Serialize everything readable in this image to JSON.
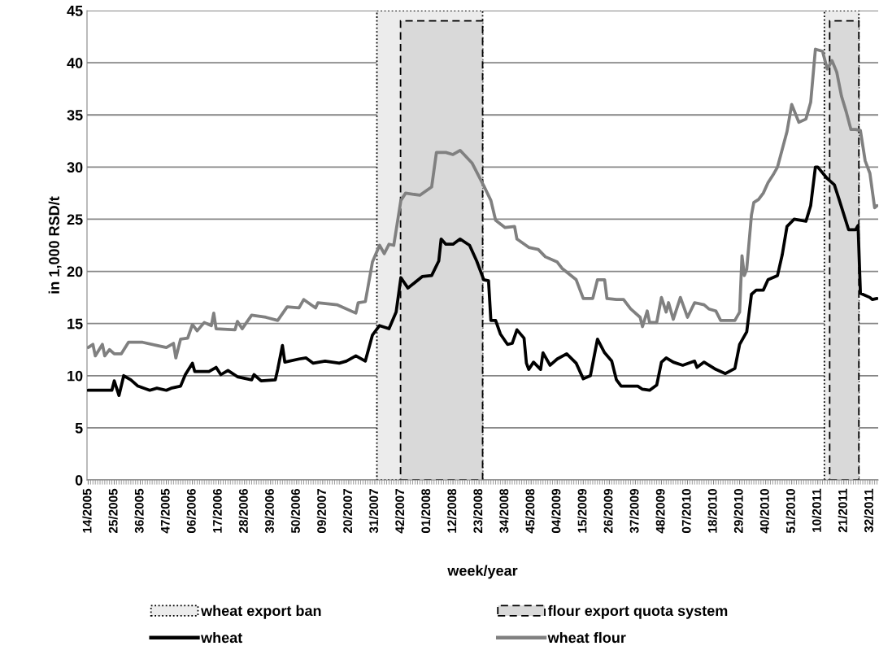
{
  "chart_data": {
    "type": "line",
    "xlabel": "week/year",
    "ylabel": "in 1,000 RSD/t",
    "ylim": [
      0,
      45
    ],
    "yticks": [
      0,
      5,
      10,
      15,
      20,
      25,
      30,
      35,
      40,
      45
    ],
    "categories": [
      "14/2005",
      null,
      null,
      null,
      null,
      null,
      null,
      null,
      null,
      null,
      null,
      "25/2005",
      null,
      null,
      null,
      null,
      null,
      null,
      null,
      null,
      null,
      null,
      "36/2005",
      null,
      null,
      null,
      null,
      null,
      null,
      null,
      null,
      null,
      null,
      "47/2005",
      null,
      null,
      null,
      null,
      null,
      null,
      null,
      null,
      null,
      null,
      "06/2006",
      null,
      null,
      null,
      null,
      null,
      null,
      null,
      null,
      null,
      null,
      "17/2006",
      null,
      null,
      null,
      null,
      null,
      null,
      null,
      null,
      null,
      null,
      "28/2006",
      null,
      null,
      null,
      null,
      null,
      null,
      null,
      null,
      null,
      null,
      "39/2006",
      null,
      null,
      null,
      null,
      null,
      null,
      null,
      null,
      null,
      null,
      "50/2006",
      null,
      null,
      null,
      null,
      null,
      null,
      null,
      null,
      null,
      null,
      "09/2007",
      null,
      null,
      null,
      null,
      null,
      null,
      null,
      null,
      null,
      null,
      "20/2007",
      null,
      null,
      null,
      null,
      null,
      null,
      null,
      null,
      null,
      null,
      "31/2007",
      null,
      null,
      null,
      null,
      null,
      null,
      null,
      null,
      null,
      null,
      "42/2007",
      null,
      null,
      null,
      null,
      null,
      null,
      null,
      null,
      null,
      null,
      "01/2008",
      null,
      null,
      null,
      null,
      null,
      null,
      null,
      null,
      null,
      null,
      "12/2008",
      null,
      null,
      null,
      null,
      null,
      null,
      null,
      null,
      null,
      null,
      "23/2008",
      null,
      null,
      null,
      null,
      null,
      null,
      null,
      null,
      null,
      null,
      "34/2008",
      null,
      null,
      null,
      null,
      null,
      null,
      null,
      null,
      null,
      null,
      "45/2008",
      null,
      null,
      null,
      null,
      null,
      null,
      null,
      null,
      null,
      null,
      "04/2009",
      null,
      null,
      null,
      null,
      null,
      null,
      null,
      null,
      null,
      null,
      "15/2009",
      null,
      null,
      null,
      null,
      null,
      null,
      null,
      null,
      null,
      null,
      "26/2009",
      null,
      null,
      null,
      null,
      null,
      null,
      null,
      null,
      null,
      null,
      "37/2009",
      null,
      null,
      null,
      null,
      null,
      null,
      null,
      null,
      null,
      null,
      "48/2009",
      null,
      null,
      null,
      null,
      null,
      null,
      null,
      null,
      null,
      null,
      "07/2010",
      null,
      null,
      null,
      null,
      null,
      null,
      null,
      null,
      null,
      null,
      "18/2010",
      null,
      null,
      null,
      null,
      null,
      null,
      null,
      null,
      null,
      null,
      "29/2010",
      null,
      null,
      null,
      null,
      null,
      null,
      null,
      null,
      null,
      null,
      "40/2010",
      null,
      null,
      null,
      null,
      null,
      null,
      null,
      null,
      null,
      null,
      "51/2010",
      null,
      null,
      null,
      null,
      null,
      null,
      null,
      null,
      null,
      null,
      "10/2011",
      null,
      null,
      null,
      null,
      null,
      null,
      null,
      null,
      null,
      null,
      "21/2011",
      null,
      null,
      null,
      null,
      null,
      null,
      null,
      null,
      null,
      null,
      "32/2011",
      null,
      null,
      null
    ],
    "grid": "y",
    "legend": "bottom",
    "marker": "none",
    "line_style": "solid",
    "annotations": [
      "wheat export ban",
      "flour export quota system"
    ],
    "series": [
      {
        "name": "wheat",
        "color": "#000000",
        "values": [
          8.6,
          null,
          null,
          null,
          null,
          null,
          null,
          null,
          null,
          null,
          8.6,
          9.5,
          null,
          8.1,
          null,
          10.0,
          null,
          null,
          9.6,
          null,
          null,
          9.0,
          null,
          null,
          null,
          null,
          8.6,
          null,
          null,
          8.8,
          null,
          null,
          null,
          8.6,
          null,
          8.8,
          null,
          null,
          null,
          9.0,
          null,
          10.1,
          null,
          null,
          11.2,
          10.4,
          null,
          null,
          null,
          null,
          null,
          10.4,
          null,
          null,
          10.8,
          null,
          10.1,
          null,
          null,
          10.5,
          null,
          null,
          null,
          9.9,
          null,
          null,
          null,
          null,
          null,
          9.6,
          10.1,
          null,
          null,
          9.5,
          null,
          null,
          null,
          null,
          null,
          9.6,
          10.6,
          null,
          12.9,
          11.3,
          null,
          null,
          null,
          null,
          null,
          11.6,
          null,
          null,
          11.7,
          null,
          null,
          11.2,
          null,
          null,
          null,
          null,
          11.4,
          null,
          null,
          null,
          null,
          null,
          11.2,
          null,
          null,
          11.4,
          null,
          null,
          null,
          11.9,
          null,
          null,
          null,
          11.4,
          null,
          null,
          13.9,
          null,
          null,
          14.8,
          null,
          null,
          null,
          14.5,
          null,
          null,
          16.1,
          null,
          19.4,
          null,
          null,
          18.4,
          null,
          null,
          null,
          null,
          null,
          19.5,
          null,
          null,
          null,
          19.6,
          null,
          null,
          21.0,
          23.1,
          null,
          22.6,
          null,
          null,
          22.6,
          null,
          null,
          23.1,
          null,
          null,
          null,
          22.5,
          null,
          null,
          21.0,
          null,
          null,
          19.2,
          null,
          19.1,
          15.3,
          null,
          15.3,
          null,
          14.0,
          null,
          null,
          13.0,
          null,
          13.1,
          null,
          14.4,
          null,
          null,
          13.6,
          11.2,
          10.6,
          null,
          11.3,
          null,
          null,
          10.6,
          12.2,
          null,
          null,
          11.0,
          null,
          null,
          11.6,
          null,
          null,
          null,
          12.1,
          null,
          null,
          null,
          11.2,
          null,
          null,
          9.7,
          null,
          null,
          10.0,
          null,
          null,
          13.5,
          null,
          null,
          12.2,
          null,
          null,
          11.4,
          null,
          9.6,
          null,
          9.0,
          null,
          null,
          null,
          null,
          null,
          null,
          9.0,
          null,
          8.7,
          null,
          null,
          8.6,
          null,
          null,
          9.1,
          null,
          11.3,
          null,
          11.7,
          null,
          null,
          11.3,
          null,
          null,
          null,
          11.0,
          null,
          null,
          null,
          null,
          11.4,
          10.8,
          null,
          null,
          11.3,
          null,
          null,
          null,
          null,
          10.6,
          null,
          null,
          null,
          10.2,
          null,
          null,
          null,
          10.7,
          null,
          13.0,
          null,
          null,
          14.2,
          null,
          17.8,
          null,
          18.2,
          null,
          null,
          18.2,
          null,
          19.2,
          null,
          null,
          null,
          19.6,
          null,
          21.6,
          null,
          24.3,
          null,
          null,
          25.0,
          null,
          null,
          null,
          null,
          24.8,
          null,
          26.3,
          null,
          30.0,
          30.0,
          null,
          null,
          null,
          28.9,
          null,
          null,
          28.3,
          null,
          26.9,
          null,
          null,
          null,
          24.0,
          null,
          null,
          24.0,
          24.4,
          17.9,
          null,
          null,
          null,
          17.5,
          17.3,
          null,
          17.4
        ]
      },
      {
        "name": "wheat flour",
        "color": "#808080",
        "values": [
          12.7,
          null,
          13.0,
          11.9,
          null,
          null,
          13.0,
          11.9,
          null,
          12.5,
          null,
          12.1,
          null,
          null,
          12.1,
          null,
          null,
          13.2,
          null,
          null,
          null,
          null,
          null,
          13.2,
          null,
          null,
          null,
          null,
          null,
          12.9,
          null,
          null,
          null,
          12.7,
          null,
          null,
          13.1,
          11.7,
          null,
          13.5,
          null,
          null,
          13.6,
          null,
          14.9,
          null,
          14.3,
          null,
          null,
          15.1,
          null,
          null,
          14.8,
          16.0,
          14.5,
          null,
          null,
          null,
          null,
          null,
          null,
          null,
          14.4,
          15.2,
          null,
          14.5,
          null,
          null,
          null,
          15.8,
          null,
          null,
          null,
          null,
          null,
          15.6,
          null,
          null,
          null,
          null,
          15.3,
          null,
          null,
          null,
          16.6,
          null,
          null,
          null,
          null,
          16.5,
          null,
          17.3,
          null,
          null,
          null,
          null,
          16.5,
          17.0,
          null,
          null,
          null,
          null,
          null,
          null,
          null,
          16.8,
          null,
          null,
          null,
          null,
          null,
          null,
          null,
          16.0,
          17.0,
          null,
          null,
          17.1,
          null,
          null,
          20.9,
          null,
          null,
          22.5,
          null,
          21.7,
          null,
          22.6,
          null,
          22.5,
          null,
          null,
          26.8,
          null,
          27.5,
          null,
          null,
          null,
          null,
          null,
          27.3,
          null,
          null,
          null,
          null,
          28.1,
          null,
          31.4,
          null,
          null,
          null,
          31.4,
          null,
          null,
          31.2,
          null,
          null,
          31.6,
          null,
          null,
          null,
          null,
          30.4,
          null,
          null,
          null,
          null,
          28.2,
          null,
          null,
          26.8,
          null,
          24.9,
          null,
          null,
          null,
          24.2,
          null,
          null,
          null,
          24.3,
          23.1,
          null,
          null,
          null,
          null,
          22.3,
          null,
          null,
          null,
          22.1,
          null,
          null,
          21.4,
          null,
          null,
          null,
          null,
          20.9,
          null,
          20.3,
          null,
          null,
          null,
          null,
          null,
          19.2,
          null,
          null,
          17.4,
          null,
          null,
          null,
          17.4,
          null,
          19.2,
          null,
          null,
          19.2,
          17.4,
          null,
          null,
          null,
          17.3,
          null,
          null,
          17.3,
          null,
          null,
          16.4,
          null,
          null,
          null,
          15.6,
          14.7,
          null,
          16.2,
          15.1,
          null,
          null,
          15.1,
          null,
          17.5,
          null,
          16.1,
          17.0,
          null,
          15.4,
          null,
          null,
          17.5,
          null,
          null,
          15.6,
          null,
          null,
          17.0,
          null,
          null,
          null,
          16.8,
          null,
          16.4,
          null,
          null,
          16.2,
          null,
          15.3,
          null,
          null,
          null,
          null,
          null,
          15.3,
          null,
          16.1,
          21.5,
          19.6,
          20.2,
          null,
          25.4,
          26.6,
          null,
          26.9,
          null,
          27.5,
          null,
          28.5,
          null,
          29.2,
          null,
          30.0,
          null,
          31.7,
          null,
          33.4,
          null,
          36.0,
          null,
          null,
          34.3,
          null,
          null,
          34.6,
          null,
          36.2,
          null,
          41.3,
          null,
          null,
          41.1,
          null,
          39.4,
          null,
          40.2,
          null,
          39.1,
          null,
          36.8,
          null,
          35.3,
          null,
          33.6,
          null,
          33.6,
          null,
          33.5,
          null,
          30.6,
          null,
          29.4,
          null,
          26.1,
          26.3
        ]
      }
    ]
  }
}
